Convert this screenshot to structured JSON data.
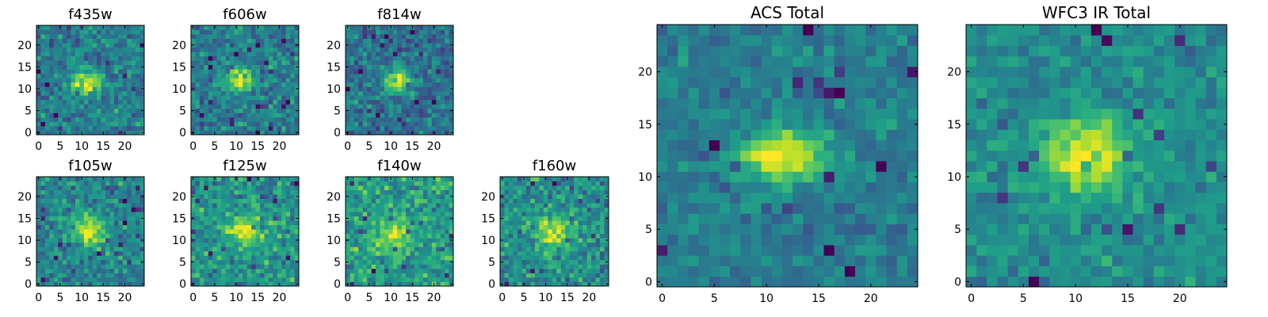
{
  "chart_data": [
    {
      "type": "heatmap",
      "title": "f435w",
      "nx": 25,
      "ny": 25,
      "xticks": [
        0,
        5,
        10,
        15,
        20
      ],
      "yticks": [
        0,
        5,
        10,
        15,
        20
      ],
      "xlim": [
        0,
        25
      ],
      "ylim": [
        0,
        25
      ],
      "colormap": "viridis",
      "blob": {
        "x": 11.5,
        "y": 12,
        "sx": 2.6,
        "sy": 1.8,
        "amp": 0.55
      },
      "noise": 0.2,
      "base": 0.42,
      "seed": 11
    },
    {
      "type": "heatmap",
      "title": "f606w",
      "nx": 25,
      "ny": 25,
      "xticks": [
        0,
        5,
        10,
        15,
        20
      ],
      "yticks": [
        0,
        5,
        10,
        15,
        20
      ],
      "xlim": [
        0,
        25
      ],
      "ylim": [
        0,
        25
      ],
      "colormap": "viridis",
      "blob": {
        "x": 11.5,
        "y": 12.5,
        "sx": 2.6,
        "sy": 1.7,
        "amp": 0.55
      },
      "noise": 0.2,
      "base": 0.42,
      "seed": 23
    },
    {
      "type": "heatmap",
      "title": "f814w",
      "nx": 25,
      "ny": 25,
      "xticks": [
        0,
        5,
        10,
        15,
        20
      ],
      "yticks": [
        0,
        5,
        10,
        15,
        20
      ],
      "xlim": [
        0,
        25
      ],
      "ylim": [
        0,
        25
      ],
      "colormap": "viridis",
      "blob": {
        "x": 12,
        "y": 12.5,
        "sx": 2.4,
        "sy": 1.7,
        "amp": 0.6
      },
      "noise": 0.2,
      "base": 0.38,
      "seed": 37
    },
    {
      "type": "heatmap",
      "title": "f105w",
      "nx": 25,
      "ny": 25,
      "xticks": [
        0,
        5,
        10,
        15,
        20
      ],
      "yticks": [
        0,
        5,
        10,
        15,
        20
      ],
      "xlim": [
        0,
        25
      ],
      "ylim": [
        0,
        25
      ],
      "colormap": "viridis",
      "blob": {
        "x": 12,
        "y": 12.5,
        "sx": 2.8,
        "sy": 2.4,
        "amp": 0.5
      },
      "noise": 0.2,
      "base": 0.45,
      "seed": 41
    },
    {
      "type": "heatmap",
      "title": "f125w",
      "nx": 25,
      "ny": 25,
      "xticks": [
        0,
        5,
        10,
        15,
        20
      ],
      "yticks": [
        0,
        5,
        10,
        15,
        20
      ],
      "xlim": [
        0,
        25
      ],
      "ylim": [
        0,
        25
      ],
      "colormap": "viridis",
      "blob": {
        "x": 12,
        "y": 12.5,
        "sx": 2.8,
        "sy": 2.4,
        "amp": 0.4
      },
      "noise": 0.22,
      "base": 0.52,
      "seed": 53
    },
    {
      "type": "heatmap",
      "title": "f140w",
      "nx": 25,
      "ny": 25,
      "xticks": [
        0,
        5,
        10,
        15,
        20
      ],
      "yticks": [
        0,
        5,
        10,
        15,
        20
      ],
      "xlim": [
        0,
        25
      ],
      "ylim": [
        0,
        25
      ],
      "colormap": "viridis",
      "blob": {
        "x": 11,
        "y": 11.5,
        "sx": 3,
        "sy": 2.6,
        "amp": 0.35
      },
      "noise": 0.22,
      "base": 0.56,
      "seed": 67
    },
    {
      "type": "heatmap",
      "title": "f160w",
      "nx": 25,
      "ny": 25,
      "xticks": [
        0,
        5,
        10,
        15,
        20
      ],
      "yticks": [
        0,
        5,
        10,
        15,
        20
      ],
      "xlim": [
        0,
        25
      ],
      "ylim": [
        0,
        25
      ],
      "colormap": "viridis",
      "blob": {
        "x": 12.5,
        "y": 12.5,
        "sx": 2.6,
        "sy": 2.6,
        "amp": 0.42
      },
      "noise": 0.22,
      "base": 0.5,
      "seed": 79
    },
    {
      "type": "heatmap",
      "title": "ACS Total",
      "nx": 25,
      "ny": 25,
      "xticks": [
        0,
        5,
        10,
        15,
        20
      ],
      "yticks": [
        0,
        5,
        10,
        15,
        20
      ],
      "xlim": [
        0,
        25
      ],
      "ylim": [
        0,
        25
      ],
      "colormap": "viridis",
      "blob": {
        "x": 12,
        "y": 12.5,
        "sx": 2.8,
        "sy": 1.8,
        "amp": 0.6
      },
      "noise": 0.14,
      "base": 0.42,
      "seed": 89
    },
    {
      "type": "heatmap",
      "title": "WFC3 IR Total",
      "nx": 25,
      "ny": 25,
      "xticks": [
        0,
        5,
        10,
        15,
        20
      ],
      "yticks": [
        0,
        5,
        10,
        15,
        20
      ],
      "xlim": [
        0,
        25
      ],
      "ylim": [
        0,
        25
      ],
      "colormap": "viridis",
      "blob": {
        "x": 11.5,
        "y": 12.5,
        "sx": 3,
        "sy": 2.4,
        "amp": 0.5
      },
      "noise": 0.14,
      "base": 0.48,
      "seed": 97
    }
  ]
}
